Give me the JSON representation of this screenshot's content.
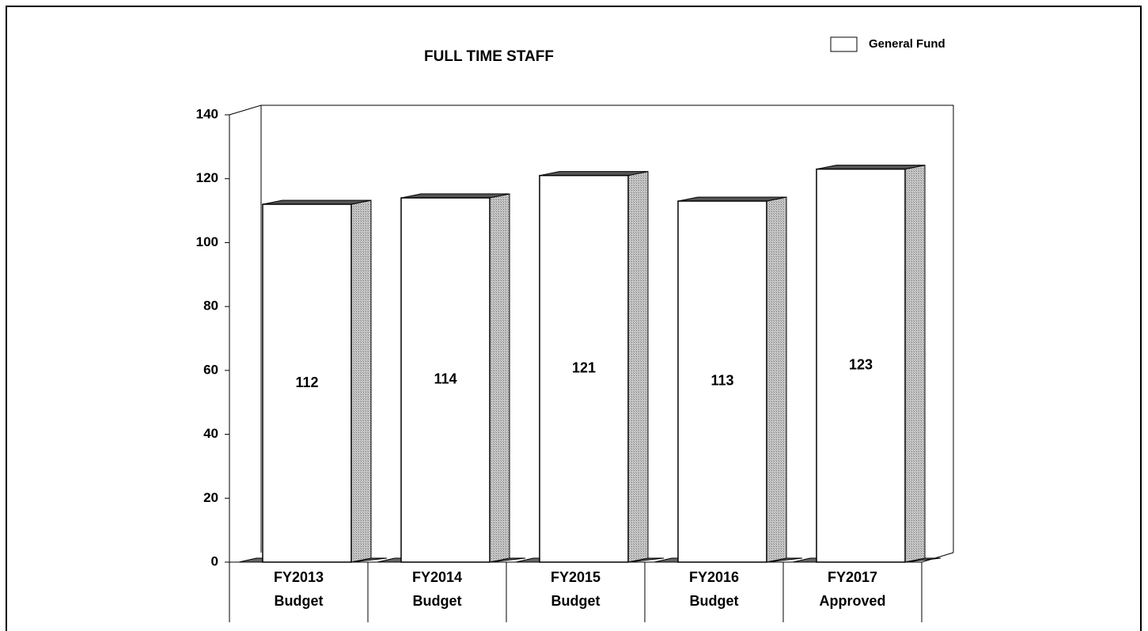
{
  "chart_data": {
    "type": "bar3d",
    "title": "FULL TIME STAFF",
    "categories": [
      [
        "FY2013",
        "Budget"
      ],
      [
        "FY2014",
        "Budget"
      ],
      [
        "FY2015",
        "Budget"
      ],
      [
        "FY2016",
        "Budget"
      ],
      [
        "FY2017",
        "Approved"
      ]
    ],
    "series": [
      {
        "name": "General Fund",
        "color": "#ffffff",
        "values": [
          112,
          114,
          121,
          113,
          123
        ]
      }
    ],
    "ylim": [
      0,
      140
    ],
    "yticks": [
      0,
      20,
      40,
      60,
      80,
      100,
      120,
      140
    ],
    "legend": "top-right"
  }
}
